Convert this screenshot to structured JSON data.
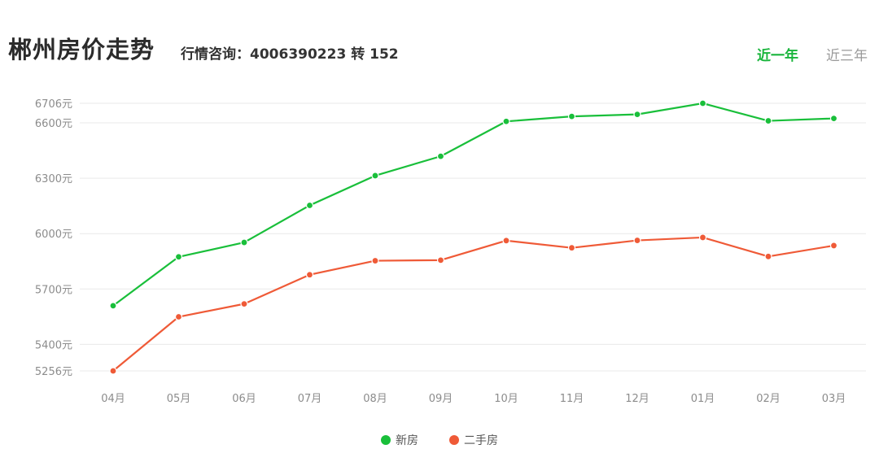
{
  "header": {
    "title": "郴州房价走势",
    "hotline": "行情咨询：4006390223 转 152",
    "tabs": [
      {
        "label": "近一年",
        "active": true
      },
      {
        "label": "近三年",
        "active": false
      }
    ]
  },
  "colors": {
    "new": "#19bf3a",
    "used": "#ef5a37",
    "grid": "#e9e9e9",
    "axis_text": "#8c8c8c"
  },
  "chart_data": {
    "type": "line",
    "categories": [
      "04月",
      "05月",
      "06月",
      "07月",
      "08月",
      "09月",
      "10月",
      "11月",
      "12月",
      "01月",
      "02月",
      "03月"
    ],
    "ylim": [
      5256,
      6706
    ],
    "yticks": [
      5256,
      5400,
      5700,
      6000,
      6300,
      6600,
      6706
    ],
    "ytick_labels": [
      "5256元",
      "5400元",
      "5700元",
      "6000元",
      "6300元",
      "6600元",
      "6706元"
    ],
    "grid": true,
    "legend_position": "bottom-center",
    "series": [
      {
        "name": "新房",
        "color_key": "new",
        "values": [
          5609,
          5874,
          5952,
          6153,
          6314,
          6419,
          6608,
          6635,
          6646,
          6706,
          6611,
          6624
        ]
      },
      {
        "name": "二手房",
        "color_key": "used",
        "values": [
          5256,
          5549,
          5619,
          5777,
          5853,
          5856,
          5962,
          5923,
          5963,
          5979,
          5876,
          5935
        ]
      }
    ]
  }
}
